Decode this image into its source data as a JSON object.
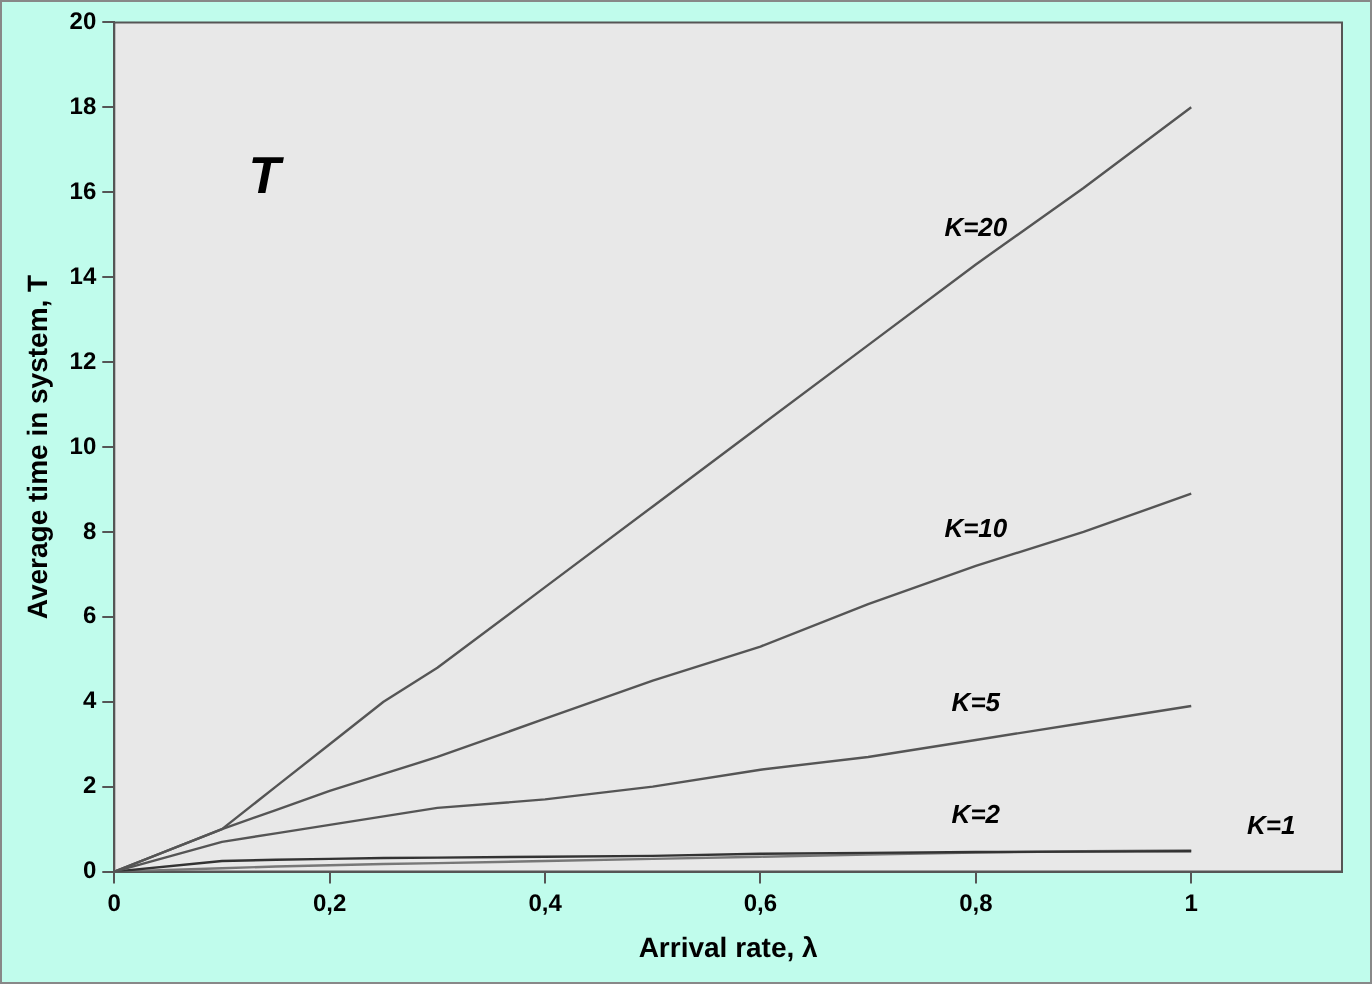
{
  "chart_data": {
    "type": "line",
    "xlabel": "Arrival rate, λ",
    "ylabel": "Average time in system, T",
    "xlim": [
      0,
      1.14
    ],
    "xticks": [
      0,
      {
        "value": 0.2,
        "label": "0,2"
      },
      {
        "value": 0.4,
        "label": "0,4"
      },
      {
        "value": 0.6,
        "label": "0,6"
      },
      {
        "value": 0.8,
        "label": "0,8"
      },
      1
    ],
    "ylim": [
      0,
      20
    ],
    "yticks": [
      0,
      2,
      4,
      6,
      8,
      10,
      12,
      14,
      16,
      18,
      20
    ],
    "grid": false,
    "legend": false,
    "marker": "none",
    "line_style": "solid",
    "x": [
      0,
      0.1,
      0.15,
      0.2,
      0.25,
      0.3,
      0.4,
      0.5,
      0.6,
      0.7,
      0.8,
      0.9,
      1
    ],
    "series": [
      {
        "name": "K=20",
        "color": "#555555",
        "values": [
          0,
          1.0,
          2.0,
          3.0,
          4.0,
          4.8,
          6.7,
          8.6,
          10.5,
          12.4,
          14.3,
          16.1,
          18
        ]
      },
      {
        "name": "K=10",
        "color": "#555555",
        "values": [
          0,
          1.0,
          1.45,
          1.9,
          2.3,
          2.7,
          3.6,
          4.5,
          5.3,
          6.3,
          7.2,
          8.0,
          8.9
        ]
      },
      {
        "name": "K=5",
        "color": "#555555",
        "values": [
          0,
          0.7,
          0.9,
          1.1,
          1.3,
          1.5,
          1.7,
          2.0,
          2.4,
          2.7,
          3.1,
          3.5,
          3.9
        ]
      },
      {
        "name": "K=2",
        "color": "#333333",
        "values": [
          0,
          0.25,
          0.28,
          0.3,
          0.32,
          0.33,
          0.35,
          0.37,
          0.42,
          0.44,
          0.46,
          0.47,
          0.48
        ]
      },
      {
        "name": "K=1",
        "color": "#777777",
        "values": [
          0,
          0.08,
          0.12,
          0.15,
          0.18,
          0.2,
          0.25,
          0.3,
          0.35,
          0.4,
          0.45,
          0.48,
          0.5
        ]
      }
    ],
    "annotations": [
      "T"
    ]
  }
}
